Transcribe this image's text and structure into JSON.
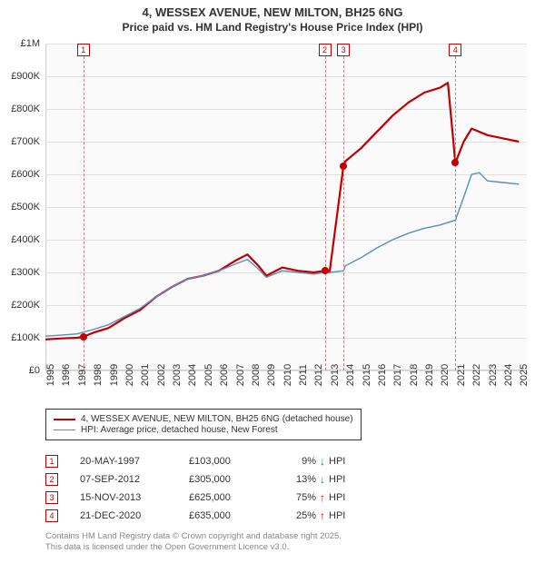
{
  "title1": "4, WESSEX AVENUE, NEW MILTON, BH25 6NG",
  "title2": "Price paid vs. HM Land Registry's House Price Index (HPI)",
  "chart": {
    "type": "line",
    "background_color": "#fafafa",
    "grid_color": "#e0e0e0",
    "border_color": "#cccccc",
    "xlim": [
      1995,
      2025.5
    ],
    "ylim": [
      0,
      1000000
    ],
    "y_ticks": [
      {
        "v": 0,
        "label": "£0"
      },
      {
        "v": 100000,
        "label": "£100K"
      },
      {
        "v": 200000,
        "label": "£200K"
      },
      {
        "v": 300000,
        "label": "£300K"
      },
      {
        "v": 400000,
        "label": "£400K"
      },
      {
        "v": 500000,
        "label": "£500K"
      },
      {
        "v": 600000,
        "label": "£600K"
      },
      {
        "v": 700000,
        "label": "£700K"
      },
      {
        "v": 800000,
        "label": "£800K"
      },
      {
        "v": 900000,
        "label": "£900K"
      },
      {
        "v": 1000000,
        "label": "£1M"
      }
    ],
    "x_ticks": [
      1995,
      1996,
      1997,
      1998,
      1999,
      2000,
      2001,
      2002,
      2003,
      2004,
      2005,
      2006,
      2007,
      2008,
      2009,
      2010,
      2011,
      2012,
      2013,
      2014,
      2015,
      2016,
      2017,
      2018,
      2019,
      2020,
      2021,
      2022,
      2023,
      2024,
      2025
    ],
    "series": [
      {
        "name": "property",
        "label": "4, WESSEX AVENUE, NEW MILTON, BH25 6NG (detached house)",
        "color": "#c00000",
        "width": 2.2,
        "data": [
          [
            1995,
            95000
          ],
          [
            1996,
            98000
          ],
          [
            1997,
            100000
          ],
          [
            1997.4,
            103000
          ],
          [
            1998,
            115000
          ],
          [
            1999,
            130000
          ],
          [
            2000,
            160000
          ],
          [
            2001,
            185000
          ],
          [
            2002,
            225000
          ],
          [
            2003,
            255000
          ],
          [
            2004,
            280000
          ],
          [
            2005,
            290000
          ],
          [
            2006,
            305000
          ],
          [
            2007,
            335000
          ],
          [
            2007.8,
            355000
          ],
          [
            2008.5,
            320000
          ],
          [
            2009,
            290000
          ],
          [
            2010,
            315000
          ],
          [
            2011,
            305000
          ],
          [
            2012,
            300000
          ],
          [
            2012.7,
            305000
          ],
          [
            2013,
            300000
          ],
          [
            2013.88,
            625000
          ],
          [
            2014,
            640000
          ],
          [
            2015,
            680000
          ],
          [
            2016,
            730000
          ],
          [
            2017,
            780000
          ],
          [
            2018,
            820000
          ],
          [
            2019,
            850000
          ],
          [
            2020,
            865000
          ],
          [
            2020.5,
            880000
          ],
          [
            2020.97,
            635000
          ],
          [
            2021.5,
            700000
          ],
          [
            2022,
            740000
          ],
          [
            2023,
            720000
          ],
          [
            2024,
            710000
          ],
          [
            2025,
            700000
          ]
        ]
      },
      {
        "name": "hpi",
        "label": "HPI: Average price, detached house, New Forest",
        "color": "#5b8bbf",
        "width": 1.4,
        "data": [
          [
            1995,
            105000
          ],
          [
            1996,
            108000
          ],
          [
            1997,
            112000
          ],
          [
            1998,
            125000
          ],
          [
            1999,
            140000
          ],
          [
            2000,
            165000
          ],
          [
            2001,
            190000
          ],
          [
            2002,
            225000
          ],
          [
            2003,
            255000
          ],
          [
            2004,
            280000
          ],
          [
            2005,
            290000
          ],
          [
            2006,
            305000
          ],
          [
            2007,
            325000
          ],
          [
            2007.8,
            340000
          ],
          [
            2008.5,
            310000
          ],
          [
            2009,
            285000
          ],
          [
            2010,
            305000
          ],
          [
            2011,
            300000
          ],
          [
            2012,
            295000
          ],
          [
            2012.7,
            300000
          ],
          [
            2013,
            300000
          ],
          [
            2013.88,
            305000
          ],
          [
            2014,
            320000
          ],
          [
            2015,
            345000
          ],
          [
            2016,
            375000
          ],
          [
            2017,
            400000
          ],
          [
            2018,
            420000
          ],
          [
            2019,
            435000
          ],
          [
            2020,
            445000
          ],
          [
            2020.97,
            460000
          ],
          [
            2021.5,
            530000
          ],
          [
            2022,
            600000
          ],
          [
            2022.5,
            605000
          ],
          [
            2023,
            580000
          ],
          [
            2024,
            575000
          ],
          [
            2025,
            570000
          ]
        ]
      }
    ],
    "sale_markers": [
      {
        "n": "1",
        "x": 1997.4,
        "y": 103000
      },
      {
        "n": "2",
        "x": 2012.7,
        "y": 305000
      },
      {
        "n": "3",
        "x": 2013.88,
        "y": 625000
      },
      {
        "n": "4",
        "x": 2020.97,
        "y": 635000
      }
    ],
    "marker_color": "#c00000",
    "marker_dash_color": "#d08080"
  },
  "legend": {
    "items": [
      {
        "color": "#c00000",
        "width": 2.2,
        "label": "4, WESSEX AVENUE, NEW MILTON, BH25 6NG (detached house)"
      },
      {
        "color": "#5b8bbf",
        "width": 1.4,
        "label": "HPI: Average price, detached house, New Forest"
      }
    ]
  },
  "sales": [
    {
      "n": "1",
      "date": "20-MAY-1997",
      "price": "£103,000",
      "pct": "9%",
      "arrow": "↓",
      "arrow_color": "#2a7a2a",
      "hpi_label": "HPI"
    },
    {
      "n": "2",
      "date": "07-SEP-2012",
      "price": "£305,000",
      "pct": "13%",
      "arrow": "↓",
      "arrow_color": "#2a7a2a",
      "hpi_label": "HPI"
    },
    {
      "n": "3",
      "date": "15-NOV-2013",
      "price": "£625,000",
      "pct": "75%",
      "arrow": "↑",
      "arrow_color": "#c00000",
      "hpi_label": "HPI"
    },
    {
      "n": "4",
      "date": "21-DEC-2020",
      "price": "£635,000",
      "pct": "25%",
      "arrow": "↑",
      "arrow_color": "#c00000",
      "hpi_label": "HPI"
    }
  ],
  "footer1": "Contains HM Land Registry data © Crown copyright and database right 2025.",
  "footer2": "This data is licensed under the Open Government Licence v3.0."
}
